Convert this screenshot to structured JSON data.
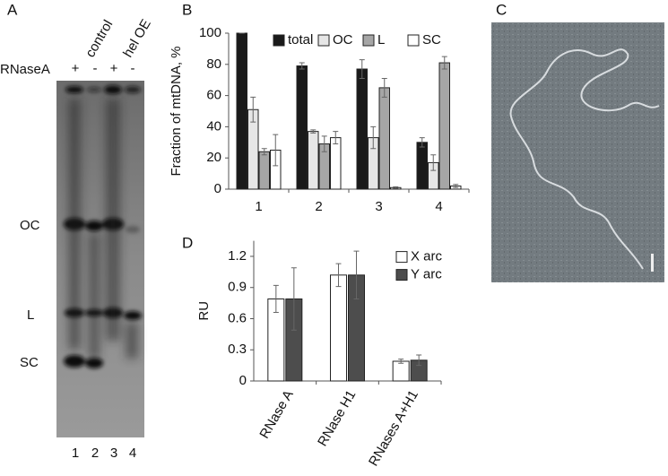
{
  "panel_labels": [
    "A",
    "B",
    "C",
    "D"
  ],
  "gel": {
    "treatment_label": "RNaseA",
    "lane_treatments": [
      "+",
      "-",
      "+",
      "-"
    ],
    "groups": [
      "control",
      "hel OE"
    ],
    "band_labels": [
      "OC",
      "L",
      "SC"
    ],
    "lane_numbers": [
      "1",
      "2",
      "3",
      "4"
    ]
  },
  "chart_data": [
    {
      "type": "bar",
      "y_label": "Fraction of mtDNA, %",
      "categories": [
        "1",
        "2",
        "3",
        "4"
      ],
      "series": [
        {
          "name": "total",
          "color": "#1a1a1a",
          "values": [
            100,
            79,
            77,
            30
          ],
          "errors": [
            0,
            2,
            6,
            3
          ]
        },
        {
          "name": "OC",
          "color": "#e6e6e6",
          "values": [
            51,
            37,
            33,
            17
          ],
          "errors": [
            8,
            1,
            7,
            5
          ]
        },
        {
          "name": "L",
          "color": "#a6a6a6",
          "values": [
            24,
            29,
            65,
            81
          ],
          "errors": [
            2,
            5,
            6,
            4
          ]
        },
        {
          "name": "SC",
          "color": "#ffffff",
          "values": [
            25,
            33,
            1,
            2
          ],
          "errors": [
            10,
            4,
            0.5,
            1
          ]
        }
      ],
      "ylim": [
        0,
        100
      ],
      "yticks": [
        0,
        20,
        40,
        60,
        80,
        100
      ],
      "legend": "top"
    },
    {
      "type": "bar",
      "y_label": "RU",
      "categories": [
        "RNase A",
        "RNase H1",
        "RNases A+H1"
      ],
      "series": [
        {
          "name": "X arc",
          "color": "#ffffff",
          "values": [
            0.79,
            1.02,
            0.19
          ],
          "errors": [
            0.13,
            0.11,
            0.02
          ]
        },
        {
          "name": "Y arc",
          "color": "#4d4d4d",
          "values": [
            0.79,
            1.02,
            0.2
          ],
          "errors": [
            0.3,
            0.23,
            0.05
          ]
        }
      ],
      "ylim": [
        0,
        1.35
      ],
      "yticks": [
        0,
        0.3,
        0.6,
        0.9,
        1.2
      ],
      "legend": "upper right"
    }
  ]
}
